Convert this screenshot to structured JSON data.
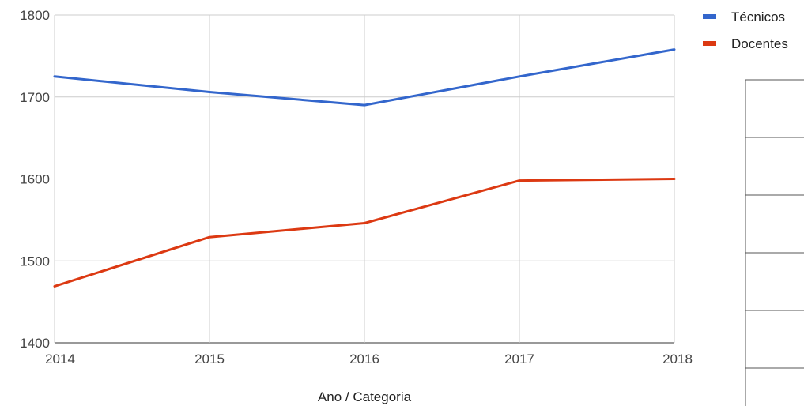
{
  "chart_data": {
    "type": "line",
    "x": [
      2014,
      2015,
      2016,
      2017,
      2018
    ],
    "x_tick_labels": [
      "2014",
      "2015",
      "2016",
      "2017",
      "2018"
    ],
    "y_tick_labels": [
      "1400",
      "1500",
      "1600",
      "1700",
      "1800"
    ],
    "ylim": [
      1400,
      1800
    ],
    "xlim": [
      2014,
      2018
    ],
    "xlabel": "Ano / Categoria",
    "grid": true,
    "legend_position": "top-right",
    "series": [
      {
        "name": "Técnicos",
        "color": "#3366cc",
        "values": [
          1725,
          1706,
          1690,
          1725,
          1758
        ]
      },
      {
        "name": "Docentes",
        "color": "#dc3912",
        "values": [
          1469,
          1529,
          1546,
          1598,
          1600
        ]
      }
    ]
  }
}
